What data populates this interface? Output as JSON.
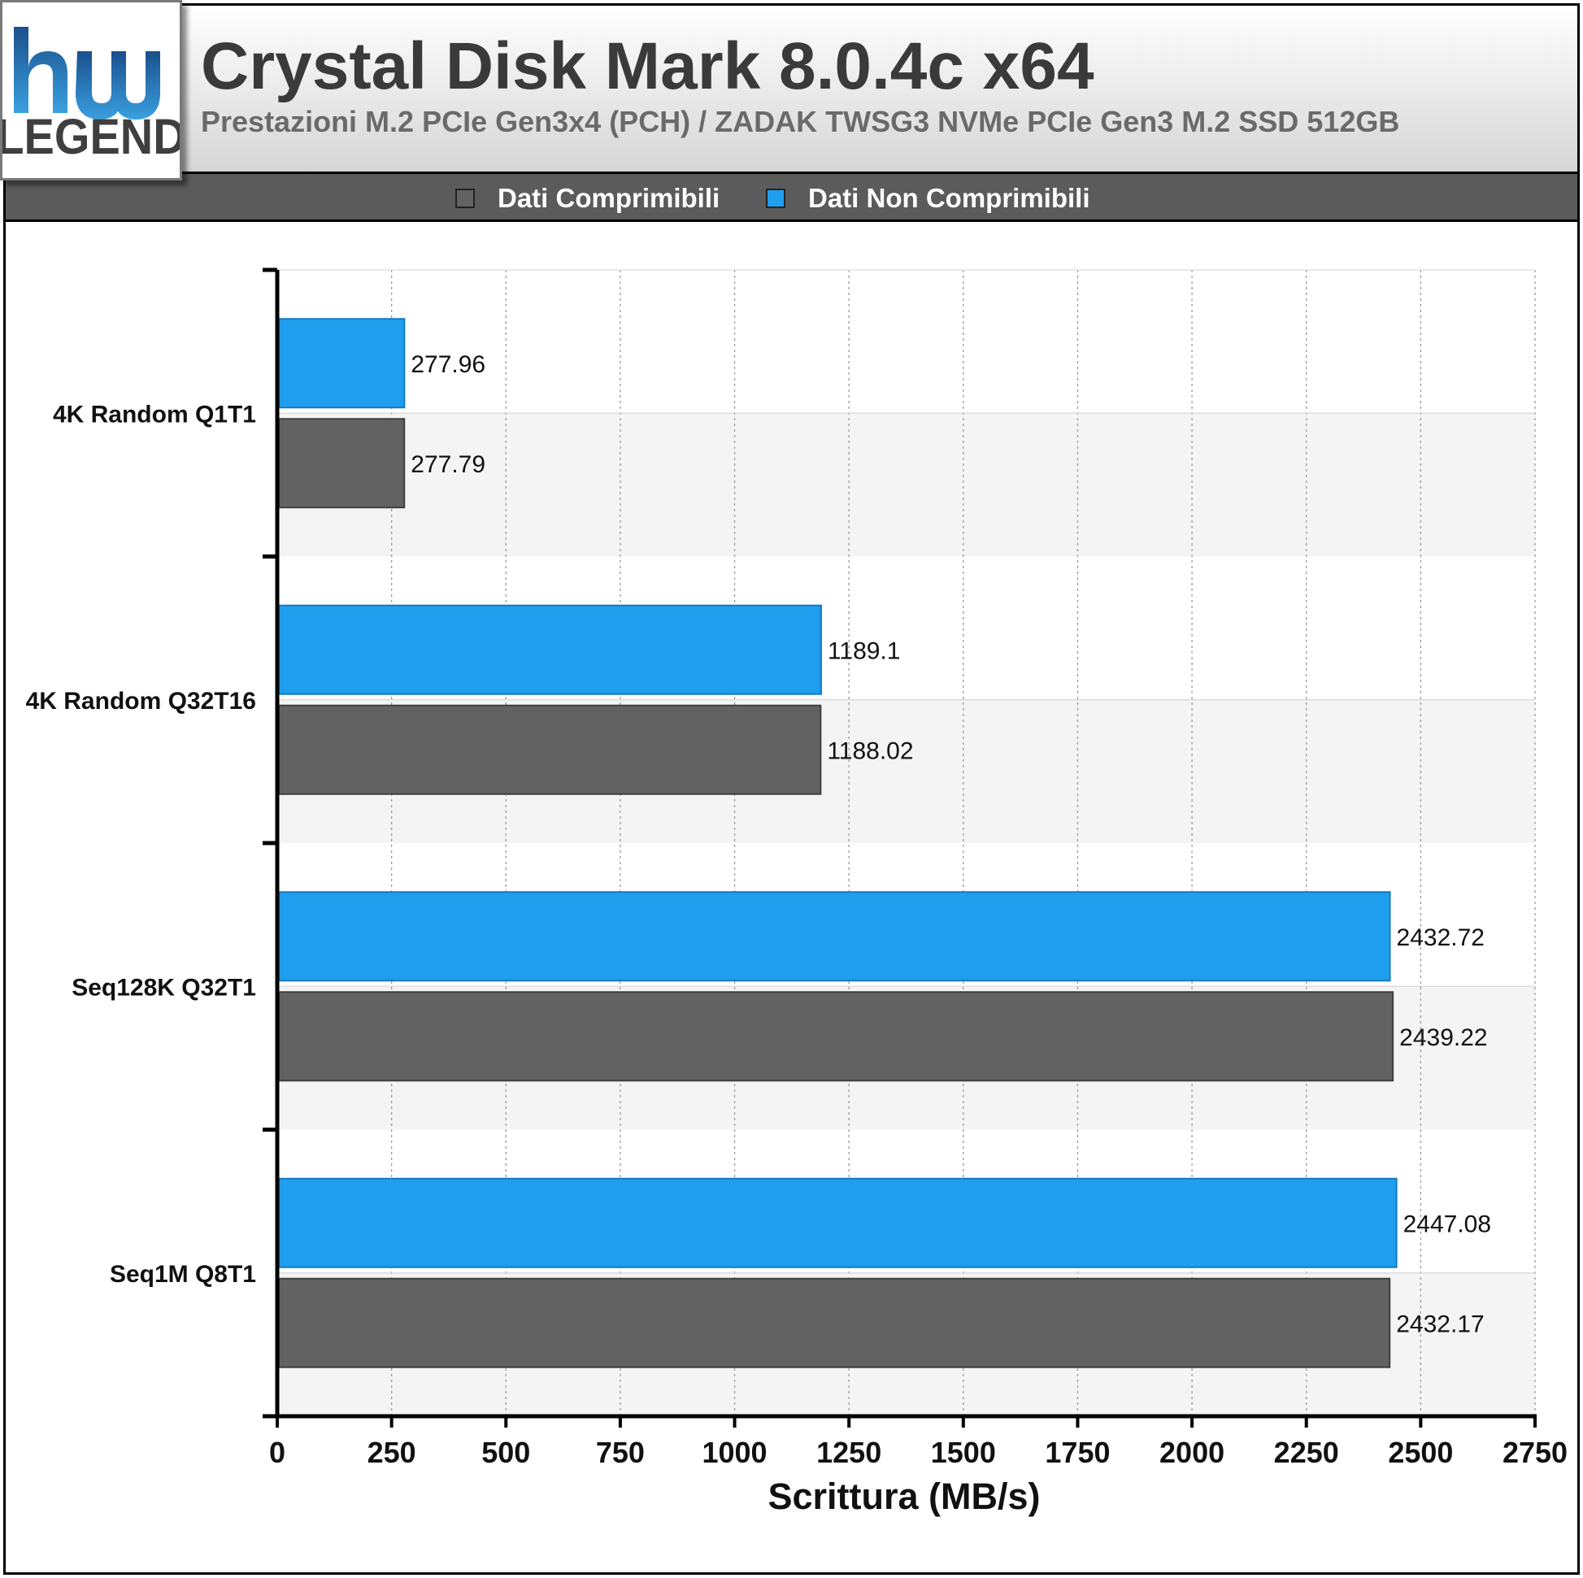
{
  "header": {
    "title": "Crystal Disk Mark 8.0.4c x64",
    "subtitle": "Prestazioni M.2 PCIe Gen3x4 (PCH) / ZADAK TWSG3 NVMe PCIe Gen3 M.2 SSD 512GB",
    "logo_text_top": "hw",
    "logo_text_bottom": "LEGEND"
  },
  "colors": {
    "compressible": "#626262",
    "non_compressible": "#209eee",
    "legend_bg": "#5b5b5b",
    "band": "#f4f4f4"
  },
  "chart_data": {
    "type": "bar",
    "orientation": "horizontal",
    "categories": [
      "4K Random Q1T1",
      "4K Random Q32T16",
      "Seq128K Q32T1",
      "Seq1M Q8T1"
    ],
    "series": [
      {
        "name": "Dati Comprimibili",
        "color": "#626262",
        "values": [
          277.79,
          1188.02,
          2439.22,
          2432.17
        ]
      },
      {
        "name": "Dati Non Comprimibili",
        "color": "#209eee",
        "values": [
          277.96,
          1189.1,
          2432.72,
          2447.08
        ]
      }
    ],
    "data_labels": {
      "Dati Comprimibili": [
        "277.79",
        "1188.02",
        "2439.22",
        "2432.17"
      ],
      "Dati Non Comprimibili": [
        "277.96",
        "1189.1",
        "2432.72",
        "2447.08"
      ]
    },
    "xlabel": "Scrittura (MB/s)",
    "xlim": [
      0,
      2750
    ],
    "xticks": [
      0,
      250,
      500,
      750,
      1000,
      1250,
      1500,
      1750,
      2000,
      2250,
      2500,
      2750
    ],
    "legend_position": "top",
    "grid": true
  }
}
